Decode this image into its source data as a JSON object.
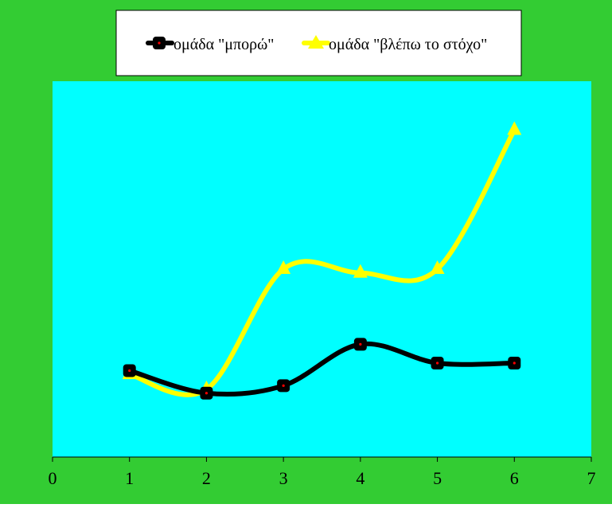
{
  "colors": {
    "background": "#33cc33",
    "plot_area": "#00ffff",
    "legend_bg": "#ffffff",
    "series_1": "#000000",
    "series_1_marker_dot": "#ff0000",
    "series_2": "#ffff00"
  },
  "chart_data": {
    "type": "line",
    "title": "",
    "xlabel": "",
    "ylabel": "",
    "xlim": [
      0,
      7
    ],
    "ylim": [
      0,
      10
    ],
    "x_ticks": [
      "0",
      "1",
      "2",
      "3",
      "4",
      "5",
      "6",
      "7"
    ],
    "y_axis_visible": false,
    "grid": false,
    "smooth": true,
    "legend_position": "top",
    "series": [
      {
        "name": "ομάδα \"μπορώ\"",
        "marker": "square",
        "x": [
          1,
          2,
          3,
          4,
          5,
          6
        ],
        "values": [
          2.3,
          1.7,
          1.9,
          3.0,
          2.5,
          2.5
        ]
      },
      {
        "name": "ομάδα \"βλέπω το στόχο\"",
        "marker": "triangle",
        "x": [
          1,
          2,
          3,
          4,
          5,
          6
        ],
        "values": [
          2.2,
          1.8,
          5.0,
          4.9,
          5.0,
          8.7
        ]
      }
    ]
  }
}
